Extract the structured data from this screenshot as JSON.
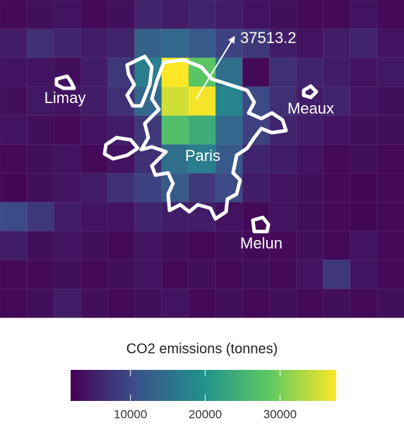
{
  "chart_data": {
    "type": "heatmap",
    "values": [
      [
        3000,
        3500,
        4000,
        3000,
        3500,
        6000,
        5000,
        6000,
        5000,
        4000,
        3500,
        3000,
        3000,
        4000,
        3000
      ],
      [
        5000,
        7000,
        6000,
        5000,
        6000,
        13000,
        14000,
        12000,
        9000,
        8000,
        5000,
        4000,
        5000,
        6000,
        4000
      ],
      [
        4000,
        4000,
        3500,
        5000,
        8000,
        17000,
        37513.2,
        28000,
        15000,
        3000,
        7000,
        6000,
        5000,
        4000,
        4500
      ],
      [
        3500,
        4500,
        4000,
        5000,
        7000,
        14000,
        35000,
        37000,
        18000,
        10000,
        7000,
        5000,
        6000,
        4000,
        3500
      ],
      [
        4000,
        3500,
        3000,
        4000,
        5000,
        8000,
        27000,
        24000,
        14000,
        9000,
        6000,
        5000,
        4000,
        3500,
        3500
      ],
      [
        3000,
        3500,
        4000,
        3000,
        4000,
        7000,
        15000,
        17000,
        12000,
        6000,
        5000,
        4000,
        3000,
        3500,
        3000
      ],
      [
        2500,
        3500,
        4000,
        5000,
        7000,
        9000,
        12000,
        8000,
        10000,
        5000,
        4000,
        3500,
        3000,
        2500,
        3000
      ],
      [
        10000,
        8000,
        5000,
        4000,
        4000,
        6000,
        5000,
        5000,
        4000,
        3000,
        4000,
        3500,
        3000,
        2500,
        3000
      ],
      [
        5000,
        3500,
        4000,
        3500,
        3000,
        4000,
        3500,
        3000,
        3500,
        3000,
        3000,
        3500,
        3000,
        4000,
        3000
      ],
      [
        3000,
        3000,
        3500,
        3000,
        3500,
        4000,
        3000,
        3500,
        3000,
        3500,
        3000,
        4000,
        8000,
        4000,
        3000
      ],
      [
        3000,
        3500,
        5000,
        3500,
        3000,
        3500,
        4000,
        3000,
        3500,
        3000,
        3500,
        3000,
        3500,
        3000,
        3500
      ]
    ],
    "annotation": "37513.2",
    "places": [
      "Limay",
      "Paris",
      "Meaux",
      "Melun"
    ],
    "legend_title": "CO2 emissions (tonnes)",
    "clim": [
      2000,
      37513.2
    ],
    "cticks": [
      10000,
      20000,
      30000
    ]
  }
}
